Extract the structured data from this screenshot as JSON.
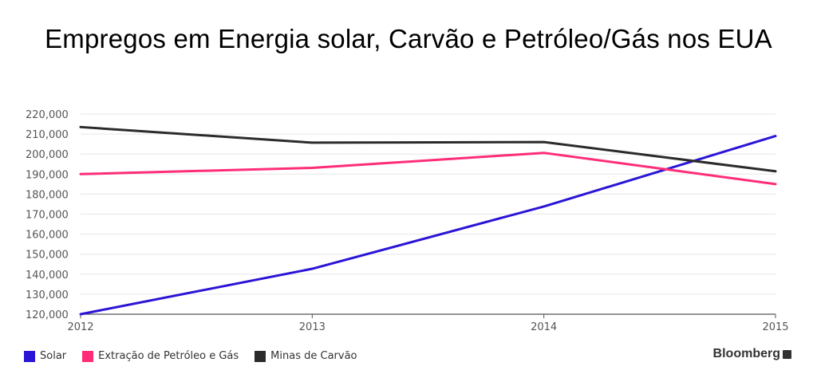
{
  "title": "Empregos em Energia solar, Carvão e Petróleo/Gás nos EUA",
  "source": "Bloomberg",
  "chart_data": {
    "type": "line",
    "title": "Empregos em Energia solar, Carvão e Petróleo/Gás nos EUA",
    "xlabel": "",
    "ylabel": "",
    "x": [
      2012,
      2013,
      2014,
      2015
    ],
    "x_tick_labels": [
      "2012",
      "2013",
      "2014",
      "2015"
    ],
    "ylim": [
      120000,
      220000
    ],
    "y_ticks": [
      120000,
      130000,
      140000,
      150000,
      160000,
      170000,
      180000,
      190000,
      200000,
      210000,
      220000
    ],
    "y_tick_labels": [
      "120,000",
      "130,000",
      "140,000",
      "150,000",
      "160,000",
      "170,000",
      "180,000",
      "190,000",
      "200,000",
      "210,000",
      "220,000"
    ],
    "grid": true,
    "legend_position": "bottom-left",
    "series": [
      {
        "name": "Solar",
        "color": "#2a14d6",
        "values": [
          120000,
          142700,
          173800,
          209000
        ]
      },
      {
        "name": "Extração de Petróleo e Gás",
        "color": "#ff2d78",
        "values": [
          190000,
          193100,
          200600,
          185000
        ]
      },
      {
        "name": "Minas de Carvão",
        "color": "#2b2b2b",
        "values": [
          213500,
          205700,
          206000,
          191400
        ]
      }
    ]
  }
}
